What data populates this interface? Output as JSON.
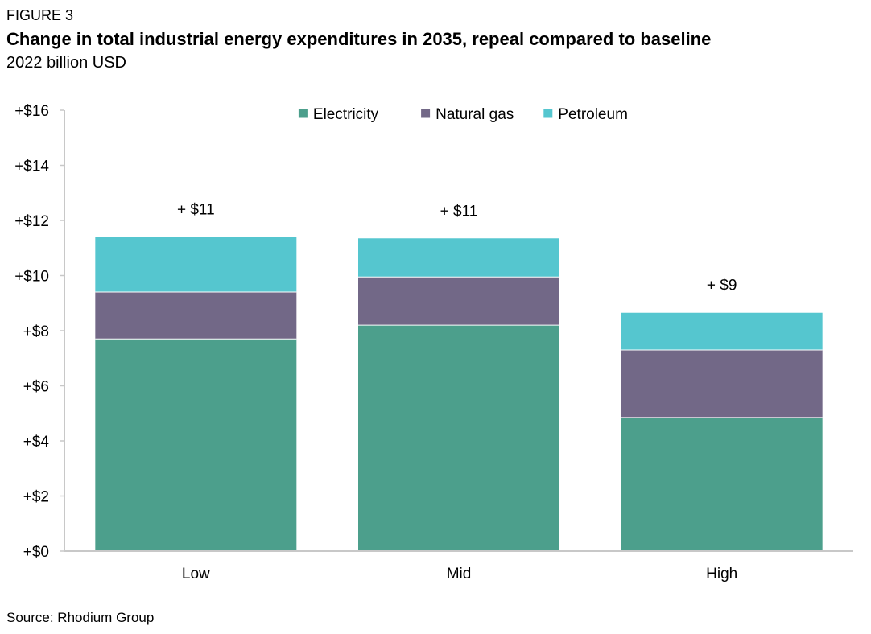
{
  "figure_label": "FIGURE 3",
  "title": "Change in total industrial energy expenditures in 2035, repeal compared to baseline",
  "subtitle": "2022 billion USD",
  "source": "Source: Rhodium Group",
  "colors": {
    "Electricity": "#4c9f8c",
    "Natural gas": "#726887",
    "Petroleum": "#55c6cf",
    "axis": "#c8c8c8"
  },
  "chart_data": {
    "type": "bar",
    "stacked": true,
    "categories": [
      "Low",
      "Mid",
      "High"
    ],
    "series": [
      {
        "name": "Electricity",
        "values": [
          7.7,
          8.2,
          4.85
        ]
      },
      {
        "name": "Natural gas",
        "values": [
          1.7,
          1.75,
          2.45
        ]
      },
      {
        "name": "Petroleum",
        "values": [
          2.0,
          1.4,
          1.35
        ]
      }
    ],
    "totals_labels": [
      "+ $11",
      "+ $11",
      "+ $9"
    ],
    "yticks": [
      0,
      2,
      4,
      6,
      8,
      10,
      12,
      14,
      16
    ],
    "ytick_labels": [
      "+$0",
      "+$2",
      "+$4",
      "+$6",
      "+$8",
      "+$10",
      "+$12",
      "+$14",
      "+$16"
    ],
    "ylim": [
      0,
      16
    ],
    "xlabel": "",
    "ylabel": "",
    "legend_position": "top-center",
    "grid": false
  }
}
